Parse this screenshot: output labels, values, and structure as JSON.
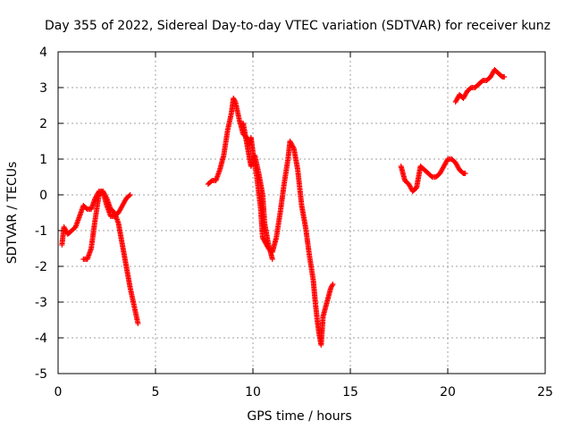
{
  "chart_data": {
    "type": "scatter",
    "title": "Day 355 of 2022, Sidereal Day-to-day VTEC variation (SDTVAR) for receiver kunz",
    "xlabel": "GPS time / hours",
    "ylabel": "SDTVAR / TECUs",
    "xlim": [
      0,
      25
    ],
    "ylim": [
      -5,
      4
    ],
    "xticks": [
      0,
      5,
      10,
      15,
      20,
      25
    ],
    "yticks": [
      -5,
      -4,
      -3,
      -2,
      -1,
      0,
      1,
      2,
      3,
      4
    ],
    "grid": true,
    "marker": "+",
    "color": "#ff0000",
    "series": [
      {
        "name": "segment-1",
        "points": [
          [
            0.2,
            -1.4
          ],
          [
            0.3,
            -0.9
          ],
          [
            0.5,
            -1.1
          ],
          [
            0.7,
            -1.0
          ],
          [
            0.9,
            -0.9
          ],
          [
            1.1,
            -0.6
          ],
          [
            1.3,
            -0.3
          ],
          [
            1.5,
            -0.4
          ],
          [
            1.7,
            -0.4
          ],
          [
            1.9,
            -0.1
          ],
          [
            2.1,
            0.1
          ],
          [
            2.3,
            0.1
          ],
          [
            2.5,
            -0.1
          ],
          [
            2.7,
            -0.4
          ],
          [
            2.9,
            -0.5
          ],
          [
            3.1,
            -0.8
          ],
          [
            3.3,
            -1.4
          ],
          [
            3.5,
            -2.0
          ],
          [
            3.7,
            -2.6
          ],
          [
            3.9,
            -3.1
          ],
          [
            4.1,
            -3.6
          ]
        ]
      },
      {
        "name": "segment-2",
        "points": [
          [
            1.3,
            -1.8
          ],
          [
            1.5,
            -1.8
          ],
          [
            1.7,
            -1.5
          ],
          [
            1.9,
            -0.7
          ],
          [
            2.1,
            0.0
          ],
          [
            2.3,
            0.1
          ],
          [
            2.5,
            -0.3
          ],
          [
            2.7,
            -0.6
          ],
          [
            2.9,
            -0.6
          ],
          [
            3.1,
            -0.5
          ],
          [
            3.3,
            -0.3
          ],
          [
            3.5,
            -0.1
          ],
          [
            3.7,
            0.0
          ]
        ]
      },
      {
        "name": "segment-3",
        "points": [
          [
            7.7,
            0.3
          ],
          [
            7.9,
            0.4
          ],
          [
            8.1,
            0.4
          ],
          [
            8.3,
            0.7
          ],
          [
            8.5,
            1.1
          ],
          [
            8.7,
            1.8
          ],
          [
            8.9,
            2.3
          ],
          [
            9.0,
            2.7
          ],
          [
            9.1,
            2.6
          ],
          [
            9.3,
            2.1
          ],
          [
            9.5,
            1.7
          ],
          [
            9.7,
            1.6
          ],
          [
            9.8,
            1.4
          ],
          [
            9.9,
            1.6
          ],
          [
            10.0,
            1.2
          ],
          [
            10.2,
            0.5
          ],
          [
            10.4,
            -0.4
          ],
          [
            10.5,
            -1.2
          ],
          [
            10.6,
            -1.3
          ],
          [
            10.8,
            -1.5
          ],
          [
            11.0,
            -1.6
          ],
          [
            11.2,
            -1.2
          ],
          [
            11.4,
            -0.5
          ],
          [
            11.6,
            0.3
          ],
          [
            11.8,
            1.0
          ],
          [
            11.9,
            1.5
          ],
          [
            12.1,
            1.3
          ],
          [
            12.3,
            0.7
          ],
          [
            12.5,
            -0.3
          ],
          [
            12.7,
            -0.9
          ],
          [
            12.9,
            -1.7
          ],
          [
            13.1,
            -2.4
          ],
          [
            13.2,
            -3.0
          ],
          [
            13.3,
            -3.5
          ],
          [
            13.4,
            -3.9
          ],
          [
            13.5,
            -4.2
          ],
          [
            13.6,
            -3.4
          ],
          [
            13.8,
            -3.0
          ],
          [
            14.0,
            -2.6
          ],
          [
            14.1,
            -2.5
          ]
        ]
      },
      {
        "name": "segment-4",
        "points": [
          [
            9.5,
            2.0
          ],
          [
            9.7,
            1.4
          ],
          [
            9.9,
            0.8
          ],
          [
            10.1,
            1.1
          ],
          [
            10.3,
            0.6
          ],
          [
            10.5,
            0.0
          ],
          [
            10.6,
            -0.8
          ],
          [
            10.8,
            -1.4
          ],
          [
            11.0,
            -1.8
          ]
        ]
      },
      {
        "name": "segment-5",
        "points": [
          [
            17.6,
            0.8
          ],
          [
            17.8,
            0.4
          ],
          [
            18.0,
            0.3
          ],
          [
            18.2,
            0.1
          ],
          [
            18.4,
            0.2
          ],
          [
            18.6,
            0.8
          ],
          [
            18.8,
            0.7
          ],
          [
            19.0,
            0.6
          ],
          [
            19.2,
            0.5
          ],
          [
            19.4,
            0.5
          ],
          [
            19.6,
            0.6
          ],
          [
            19.8,
            0.8
          ],
          [
            20.0,
            1.0
          ],
          [
            20.2,
            1.0
          ],
          [
            20.4,
            0.9
          ],
          [
            20.6,
            0.7
          ],
          [
            20.8,
            0.6
          ],
          [
            20.9,
            0.6
          ]
        ]
      },
      {
        "name": "segment-6",
        "points": [
          [
            20.4,
            2.6
          ],
          [
            20.6,
            2.8
          ],
          [
            20.8,
            2.7
          ],
          [
            21.0,
            2.9
          ],
          [
            21.2,
            3.0
          ],
          [
            21.4,
            3.0
          ],
          [
            21.6,
            3.1
          ],
          [
            21.8,
            3.2
          ],
          [
            22.0,
            3.2
          ],
          [
            22.2,
            3.3
          ],
          [
            22.4,
            3.5
          ],
          [
            22.6,
            3.4
          ],
          [
            22.8,
            3.3
          ],
          [
            22.9,
            3.3
          ]
        ]
      }
    ]
  }
}
